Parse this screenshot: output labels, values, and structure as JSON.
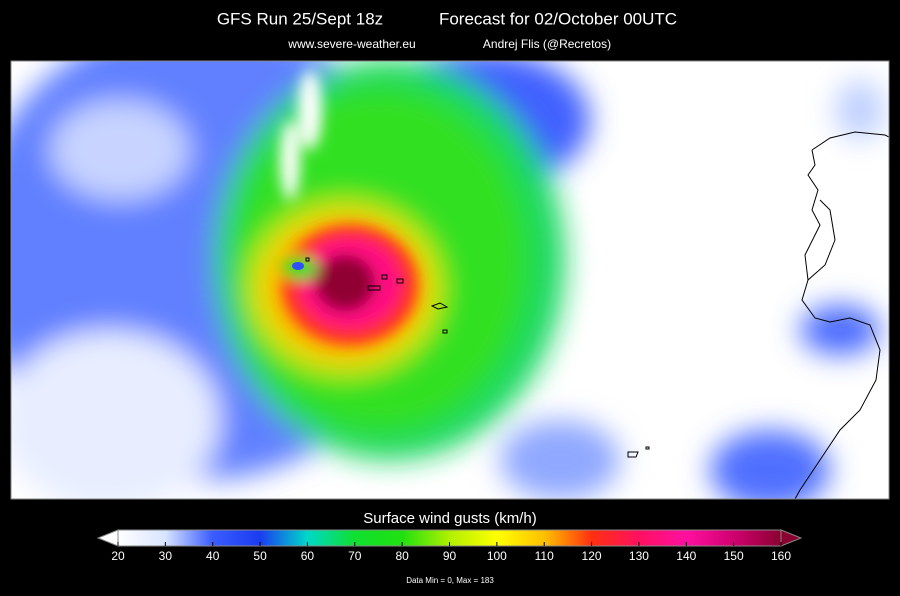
{
  "header": {
    "run": "GFS Run 25/Sept 18z",
    "forecast": "Forecast for 02/October  00UTC",
    "website": "www.severe-weather.eu",
    "author": "Andrej Flis (@Recretos)"
  },
  "colorbar": {
    "label": "Surface wind gusts (km/h)",
    "lim": [
      20,
      160
    ],
    "ticks": [
      20,
      30,
      40,
      50,
      60,
      70,
      80,
      90,
      100,
      110,
      120,
      130,
      140,
      150,
      160
    ],
    "colors": [
      "#ffffff",
      "#d8e4ff",
      "#3a5cff",
      "#1a3cf0",
      "#00d8c8",
      "#10e030",
      "#20e010",
      "#b0f000",
      "#ffff00",
      "#ffc000",
      "#ff3010",
      "#ff1060",
      "#ff10a0",
      "#d00070",
      "#8a0030"
    ]
  },
  "footer": {
    "stats": "Data Min = 0, Max = 183"
  }
}
